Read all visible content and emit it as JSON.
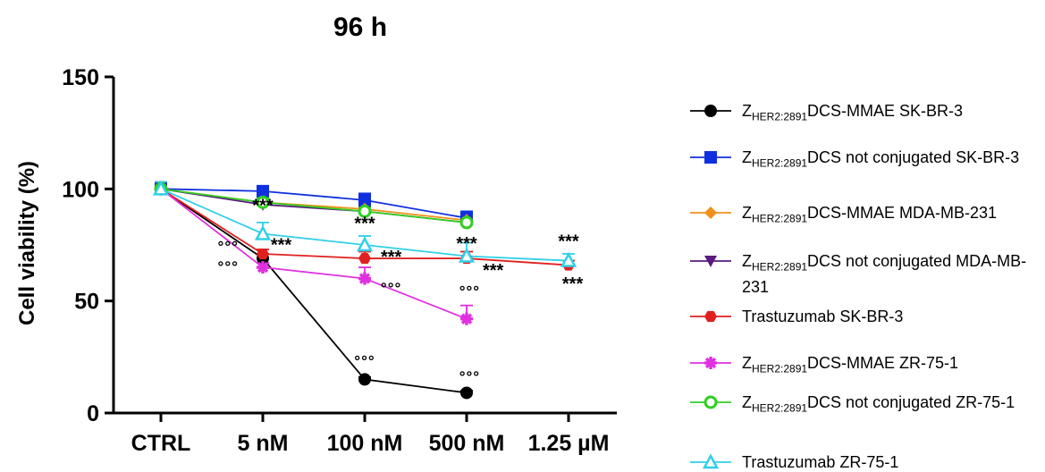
{
  "chart_data": {
    "type": "line",
    "title": "96 h",
    "xlabel": "",
    "ylabel": "Cell viability (%)",
    "ylim": [
      0,
      150
    ],
    "yticks": [
      0,
      50,
      100,
      150
    ],
    "categories": [
      "CTRL",
      "5 nM",
      "100 nM",
      "500 nM",
      "1.25 µM"
    ],
    "legend_position": "right",
    "series": [
      {
        "name": "ZHER2:2891DCS-MMAE SK-BR-3",
        "name_main": "Z",
        "name_sub": "HER2:2891",
        "name_rest": "DCS-MMAE SK-BR-3",
        "color": "#000000",
        "marker": "circle-filled",
        "values": [
          100,
          69,
          15,
          9,
          null
        ],
        "err": [
          3,
          2,
          1,
          1,
          null
        ]
      },
      {
        "name": "ZHER2:2891DCS not conjugated SK-BR-3",
        "name_main": "Z",
        "name_sub": "HER2:2891",
        "name_rest": "DCS not conjugated SK-BR-3",
        "color": "#1030e0",
        "marker": "square-filled",
        "values": [
          100,
          99,
          95,
          87,
          null
        ],
        "err": [
          3,
          2,
          3,
          3,
          null
        ]
      },
      {
        "name": "ZHER2:2891DCS-MMAE MDA-MB-231",
        "name_main": "Z",
        "name_sub": "HER2:2891",
        "name_rest": "DCS-MMAE MDA-MB-231",
        "color": "#f0901a",
        "marker": "diamond-filled",
        "values": [
          100,
          94,
          91,
          86,
          null
        ],
        "err": [
          3,
          2,
          2,
          2,
          null
        ]
      },
      {
        "name": "ZHER2:2891DCS not conjugated MDA-MB-231",
        "name_main": "Z",
        "name_sub": "HER2:2891",
        "name_rest": "DCS not conjugated MDA-MB-231",
        "color": "#5a1a80",
        "marker": "triangle-down-filled",
        "values": [
          100,
          93,
          90,
          85,
          null
        ],
        "err": [
          3,
          2,
          2,
          2,
          null
        ]
      },
      {
        "name": "Trastuzumab SK-BR-3",
        "name_main": "Trastuzumab SK-BR-3",
        "name_sub": "",
        "name_rest": "",
        "color": "#e02020",
        "marker": "hexagon-filled",
        "values": [
          100,
          71,
          69,
          69,
          66
        ],
        "err": [
          2,
          2,
          3,
          3,
          2
        ]
      },
      {
        "name": "ZHER2:2891DCS-MMAE ZR-75-1",
        "name_main": "Z",
        "name_sub": "HER2:2891",
        "name_rest": "DCS-MMAE ZR-75-1",
        "color": "#e030e0",
        "marker": "asterisk",
        "values": [
          100,
          65,
          60,
          42,
          null
        ],
        "err": [
          3,
          2,
          5,
          6,
          null
        ]
      },
      {
        "name": "ZHER2:2891DCS not conjugated ZR-75-1",
        "name_main": "Z",
        "name_sub": "HER2:2891",
        "name_rest": "DCS not conjugated ZR-75-1",
        "color": "#30d020",
        "marker": "circle-open",
        "values": [
          100,
          94,
          90,
          85,
          null
        ],
        "err": [
          3,
          2,
          2,
          2,
          null
        ]
      },
      {
        "name": "Trastuzumab ZR-75-1",
        "name_main": "Trastuzumab ZR-75-1",
        "name_sub": "",
        "name_rest": "",
        "color": "#30d0e8",
        "marker": "triangle-up-open",
        "values": [
          100,
          80,
          75,
          70,
          68
        ],
        "err": [
          3,
          5,
          4,
          6,
          3
        ]
      }
    ],
    "annotations": [
      {
        "text": "***",
        "kind": "star",
        "at": [
          1,
          90
        ]
      },
      {
        "text": "***",
        "kind": "star",
        "at": [
          1.18,
          72.5
        ]
      },
      {
        "text": "°°°",
        "kind": "circ",
        "at": [
          0.66,
          72
        ]
      },
      {
        "text": "°°°",
        "kind": "circ",
        "at": [
          0.66,
          63
        ]
      },
      {
        "text": "***",
        "kind": "star",
        "at": [
          2,
          82
        ]
      },
      {
        "text": "***",
        "kind": "star",
        "at": [
          2.26,
          67
        ]
      },
      {
        "text": "°°°",
        "kind": "circ",
        "at": [
          2.26,
          53.5
        ]
      },
      {
        "text": "°°°",
        "kind": "circ",
        "at": [
          2,
          21
        ]
      },
      {
        "text": "***",
        "kind": "star",
        "at": [
          3,
          73
        ]
      },
      {
        "text": "***",
        "kind": "star",
        "at": [
          3.26,
          61
        ]
      },
      {
        "text": "°°°",
        "kind": "circ",
        "at": [
          3.03,
          52
        ]
      },
      {
        "text": "°°°",
        "kind": "circ",
        "at": [
          3.03,
          14
        ]
      },
      {
        "text": "***",
        "kind": "star",
        "at": [
          4,
          74
        ]
      },
      {
        "text": "***",
        "kind": "star",
        "at": [
          4.04,
          55
        ]
      }
    ]
  }
}
